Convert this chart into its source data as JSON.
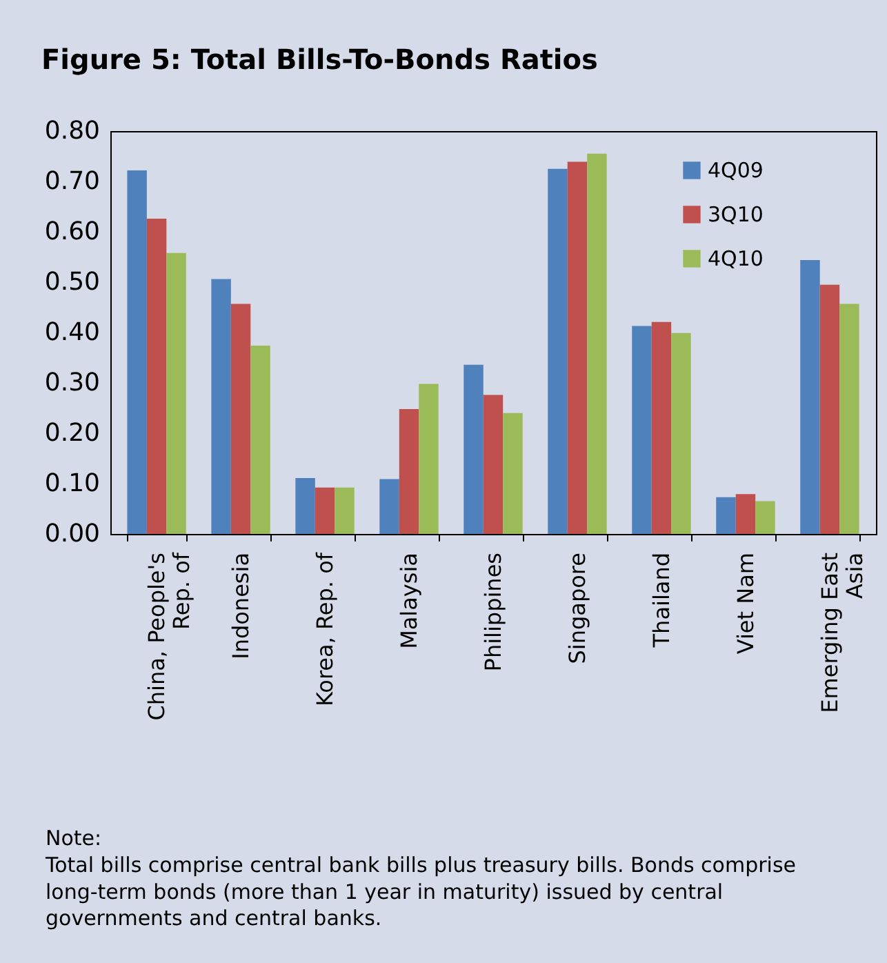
{
  "chart_data": {
    "type": "bar",
    "title": "Figure 5: Total Bills-To-Bonds Ratios",
    "categories": [
      "China, People's Rep. of",
      "Indonesia",
      "Korea, Rep. of",
      "Malaysia",
      "Philippines",
      "Singapore",
      "Thailand",
      "Viet Nam",
      "Emerging East Asia"
    ],
    "series": [
      {
        "name": "4Q09",
        "color": "#4f81bd",
        "values": [
          0.722,
          0.506,
          0.111,
          0.109,
          0.336,
          0.725,
          0.413,
          0.073,
          0.544
        ]
      },
      {
        "name": "3Q10",
        "color": "#c0504d",
        "values": [
          0.626,
          0.457,
          0.092,
          0.248,
          0.276,
          0.739,
          0.421,
          0.079,
          0.495
        ]
      },
      {
        "name": "4Q10",
        "color": "#9bbb59",
        "values": [
          0.558,
          0.374,
          0.092,
          0.298,
          0.24,
          0.755,
          0.399,
          0.065,
          0.457
        ]
      }
    ],
    "ylim": [
      0,
      0.8
    ],
    "yticks": [
      {
        "value": 0,
        "label": "0.00"
      },
      {
        "value": 0.1,
        "label": "0.10"
      },
      {
        "value": 0.2,
        "label": "0.20"
      },
      {
        "value": 0.3,
        "label": "0.30"
      },
      {
        "value": 0.4,
        "label": "0.40"
      },
      {
        "value": 0.5,
        "label": "0.50"
      },
      {
        "value": 0.6,
        "label": "0.60"
      },
      {
        "value": 0.7,
        "label": "0.70"
      },
      {
        "value": 0.8,
        "label": "0.80"
      }
    ],
    "grid": false,
    "legend": "top right",
    "annotations": [
      "Note:",
      "Total bills comprise central bank bills plus treasury bills. Bonds comprise long-term bonds (more than 1 year in maturity) issued by central governments and central banks."
    ]
  }
}
